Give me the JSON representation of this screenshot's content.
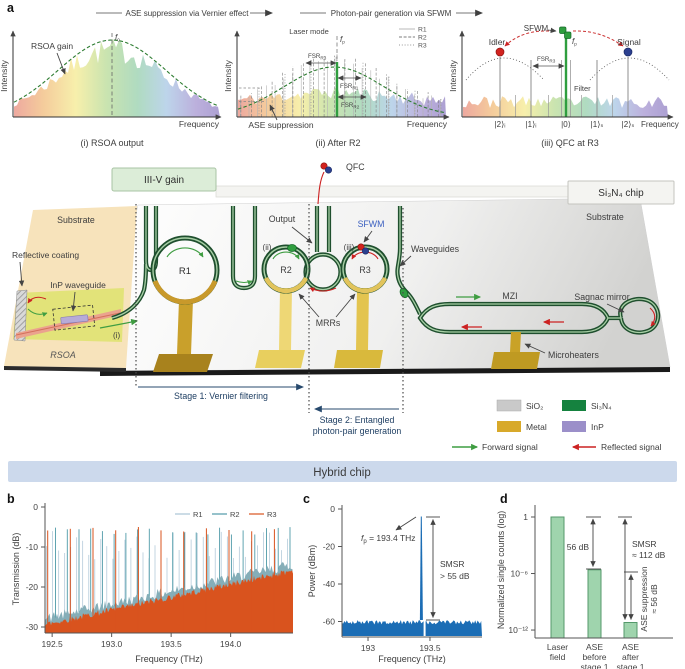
{
  "panel_labels": {
    "a": "a",
    "b": "b",
    "c": "c",
    "d": "d"
  },
  "panel_a": {
    "flow1": "ASE suppression via Vernier effect",
    "flow2": "Photon-pair generation via SFWM",
    "plot1": {
      "ylabel": "Intensity",
      "xlabel": "Frequency",
      "gain": "RSOA gain",
      "f0": {
        "b": "f",
        "s": "0"
      },
      "caption": "(i) RSOA output"
    },
    "plot2": {
      "ylabel": "Intensity",
      "xlabel": "Frequency",
      "laser_mode": "Laser mode",
      "fp": {
        "b": "f",
        "s": "p"
      },
      "legend": [
        "R1",
        "R2",
        "R3"
      ],
      "fsr_top": {
        "b": "FSR",
        "s": "R3"
      },
      "fsr_mid": {
        "b": "FSR",
        "s": "R1"
      },
      "fsr_bot": {
        "b": "FSR",
        "s": "R2"
      },
      "ase": "ASE suppression",
      "caption": "(ii) After R2"
    },
    "plot3": {
      "ylabel": "Intensity",
      "xlabel": "Frequency",
      "sfwm": "SFWM",
      "idler": "Idler",
      "signal": "Signal",
      "fp": {
        "b": "f",
        "s": "p"
      },
      "fsr": {
        "b": "FSR",
        "s": "R3"
      },
      "filter": "Filter",
      "kets": [
        "|2⟩ᵢ",
        "|1⟩ᵢ",
        "|0⟩",
        "|1⟩ₛ",
        "|2⟩ₛ"
      ],
      "caption": "(iii) QFC at R3"
    }
  },
  "chip": {
    "gain_box": "III-V gain",
    "chip_box": "Si₃N₄ chip",
    "qfc": "QFC",
    "substrate_left": "Substrate",
    "substrate_right": "Substrate",
    "coating": "Reflective coating",
    "inp": "InP waveguide",
    "rsoa": "RSOA",
    "r1": "R1",
    "r2": "R2",
    "r3": "R3",
    "m1": "(i)",
    "m2": "(ii)",
    "m3": "(iii)",
    "output": "Output",
    "sfwm": "SFWM",
    "waveguides": "Waveguides",
    "mrrs": "MRRs",
    "mzi": "MZI",
    "sagnac": "Sagnac mirror",
    "microheaters": "Microheaters",
    "stage1": "Stage 1: Vernier filtering",
    "stage2_l1": "Stage 2: Entangled",
    "stage2_l2": "photon-pair generation",
    "banner": "Hybrid chip",
    "legend": {
      "sio2": "SiO₂",
      "si3n4": "Si₃N₄",
      "metal": "Metal",
      "inp": "InP",
      "forward": "Forward signal",
      "reflected": "Reflected signal"
    },
    "colors": {
      "waveguide": "#1f4f2e",
      "waveguide_light": "#a7cfa5",
      "sio2": "#c9c9c9",
      "si3n4": "#15823f",
      "metal": "#d8a92a",
      "inp": "#9b8fc9",
      "forward": "#3f9d42",
      "reflected": "#cc2222",
      "banner_bg": "#ccd9ec"
    }
  },
  "chart_data": [
    {
      "type": "line",
      "panel": "b",
      "ylabel": "Transmission (dB)",
      "xlabel": "Frequency (THz)",
      "xlim": [
        192.44,
        194.52
      ],
      "ylim": [
        -31.5,
        0
      ],
      "xticks": [
        192.5,
        193.0,
        193.5,
        194.0
      ],
      "xtick_labels": [
        "192.5",
        "193.0",
        "193.5",
        "194.0"
      ],
      "yticks": [
        0,
        -10,
        -20,
        -30
      ],
      "legend": [
        {
          "name": "R1",
          "color": "#aac4d6"
        },
        {
          "name": "R2",
          "color": "#4f9aa8"
        },
        {
          "name": "R3",
          "color": "#d9531e"
        }
      ],
      "combs": [
        {
          "name": "R1",
          "fsr_thz": 0.0506,
          "peak_db": -6
        },
        {
          "name": "R2",
          "fsr_thz": 0.0985,
          "peak_db": -5
        },
        {
          "name": "R3",
          "fsr_thz": 0.1905,
          "peak_db": -5
        }
      ],
      "align_freq_thz": 193.415,
      "background_ramp_db": [
        -30,
        -16.5
      ],
      "grid": false,
      "legend_position": "top-right"
    },
    {
      "type": "spectrum",
      "panel": "c",
      "ylabel": "Power (dBm)",
      "xlabel": "Frequency (THz)",
      "xlim": [
        192.79,
        193.92
      ],
      "ylim": [
        -68,
        0
      ],
      "xticks": [
        193,
        193.5
      ],
      "xtick_labels": [
        "193",
        "193.5"
      ],
      "yticks": [
        0,
        -20,
        -40,
        -60
      ],
      "peak_freq_thz": 193.43,
      "peak_power_dbm": -4,
      "noise_floor_dbm": -60.5,
      "color": "#1b6db5",
      "ann_fp": {
        "b": "f",
        "s": "p"
      },
      "ann_fp_value": " = 193.4 THz",
      "smsr_l1": "SMSR",
      "smsr_l2": "> 55 dB"
    },
    {
      "type": "bar",
      "panel": "d",
      "ylabel": "Normalized single counts (log)",
      "categories": [
        [
          "Laser",
          "field"
        ],
        [
          "ASE",
          "before",
          "stage 1"
        ],
        [
          "ASE",
          "after",
          "stage 1"
        ]
      ],
      "values": [
        1,
        2.5e-06,
        6.3e-12
      ],
      "ytick_labels": [
        "1",
        "10⁻⁶",
        "10⁻¹²"
      ],
      "ytick_values": [
        1,
        1e-06,
        1e-12
      ],
      "bar_color": "#9fd4ad",
      "bar_edge": "#54996b",
      "ann_56": "56 dB",
      "smsr_l1": "SMSR",
      "smsr_l2": "≈ 112 dB",
      "ase_l1": "ASE suppression",
      "ase_l2": "≈ 56 dB"
    }
  ]
}
